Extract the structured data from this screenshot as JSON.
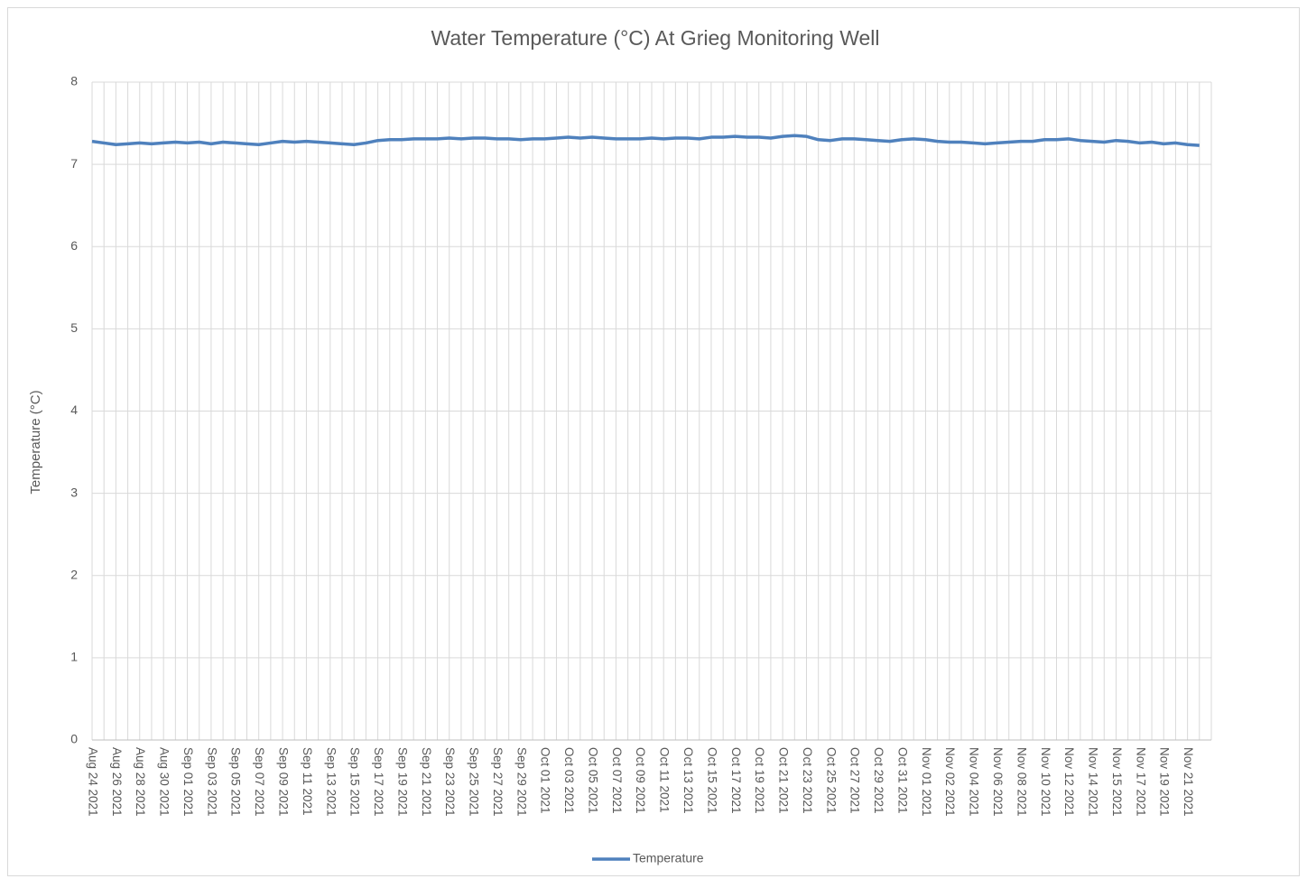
{
  "chart_data": {
    "type": "line",
    "title": "Water Temperature (°C) At Grieg Monitoring Well",
    "y_label": "Temperature (°C)",
    "categories": [
      "Aug 24 2021",
      null,
      "Aug 26 2021",
      null,
      "Aug 28 2021",
      null,
      "Aug 30 2021",
      null,
      "Sep 01 2021",
      null,
      "Sep 03 2021",
      null,
      "Sep 05 2021",
      null,
      "Sep 07 2021",
      null,
      "Sep 09 2021",
      null,
      "Sep 11 2021",
      null,
      "Sep 13 2021",
      null,
      "Sep 15 2021",
      null,
      "Sep 17 2021",
      null,
      "Sep 19 2021",
      null,
      "Sep 21 2021",
      null,
      "Sep 23 2021",
      null,
      "Sep 25 2021",
      null,
      "Sep 27 2021",
      null,
      "Sep 29 2021",
      null,
      "Oct 01 2021",
      null,
      "Oct 03 2021",
      null,
      "Oct 05 2021",
      null,
      "Oct 07 2021",
      null,
      "Oct 09 2021",
      null,
      "Oct 11 2021",
      null,
      "Oct 13 2021",
      null,
      "Oct 15 2021",
      null,
      "Oct 17 2021",
      null,
      "Oct 19 2021",
      null,
      "Oct 21 2021",
      null,
      "Oct 23 2021",
      null,
      "Oct 25 2021",
      null,
      "Oct 27 2021",
      null,
      "Oct 29 2021",
      null,
      "Oct 31 2021",
      null,
      "Nov 01 2021",
      null,
      "Nov 02 2021",
      null,
      "Nov 04 2021",
      null,
      "Nov 06 2021",
      null,
      "Nov 08 2021",
      null,
      "Nov 10 2021",
      null,
      "Nov 12 2021",
      null,
      "Nov 14 2021",
      null,
      "Nov 15 2021",
      null,
      "Nov 17 2021",
      null,
      "Nov 19 2021",
      null,
      "Nov 21 2021",
      null
    ],
    "series": [
      {
        "name": "Temperature",
        "color": "#4f81bd",
        "values": [
          7.28,
          7.26,
          7.24,
          7.25,
          7.26,
          7.25,
          7.26,
          7.27,
          7.26,
          7.27,
          7.25,
          7.27,
          7.26,
          7.25,
          7.24,
          7.26,
          7.28,
          7.27,
          7.28,
          7.27,
          7.26,
          7.25,
          7.24,
          7.26,
          7.29,
          7.3,
          7.3,
          7.31,
          7.31,
          7.31,
          7.32,
          7.31,
          7.32,
          7.32,
          7.31,
          7.31,
          7.3,
          7.31,
          7.31,
          7.32,
          7.33,
          7.32,
          7.33,
          7.32,
          7.31,
          7.31,
          7.31,
          7.32,
          7.31,
          7.32,
          7.32,
          7.31,
          7.33,
          7.33,
          7.34,
          7.33,
          7.33,
          7.32,
          7.34,
          7.35,
          7.34,
          7.3,
          7.29,
          7.31,
          7.31,
          7.3,
          7.29,
          7.28,
          7.3,
          7.31,
          7.3,
          7.28,
          7.27,
          7.27,
          7.26,
          7.25,
          7.26,
          7.27,
          7.28,
          7.28,
          7.3,
          7.3,
          7.31,
          7.29,
          7.28,
          7.27,
          7.29,
          7.28,
          7.26,
          7.27,
          7.25,
          7.26,
          7.24,
          7.23
        ]
      }
    ],
    "ylim": [
      0,
      8
    ],
    "yticks": [
      0,
      1,
      2,
      3,
      4,
      5,
      6,
      7,
      8
    ],
    "grid": true,
    "legend": "bottom"
  }
}
